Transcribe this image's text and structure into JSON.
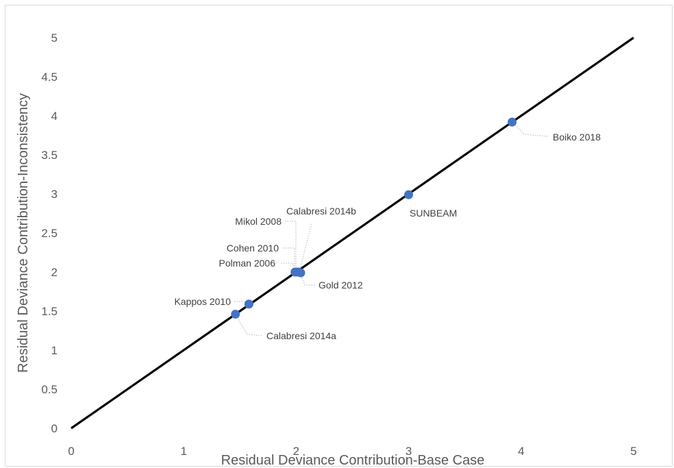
{
  "chart_data": {
    "type": "scatter",
    "xlabel": "Residual Deviance Contribution-Base Case",
    "ylabel": "Residual Deviance Contribution-Inconsistency",
    "xlim": [
      0,
      5
    ],
    "ylim": [
      0,
      5
    ],
    "x_ticks": [
      "0",
      "1",
      "2",
      "3",
      "4",
      "5"
    ],
    "y_ticks": [
      "0",
      "0.5",
      "1",
      "1.5",
      "2",
      "2.5",
      "3",
      "3.5",
      "4",
      "4.5",
      "5"
    ],
    "grid": false,
    "reference_line": {
      "from": [
        0,
        0
      ],
      "to": [
        5,
        5
      ]
    },
    "marker_color": "#4472C4",
    "line_color": "#000000",
    "points": [
      {
        "label": "Boiko 2018",
        "x": 3.92,
        "y": 3.92
      },
      {
        "label": "SUNBEAM",
        "x": 3.0,
        "y": 2.99
      },
      {
        "label": "Calabresi 2014b",
        "x": 2.02,
        "y": 2.0
      },
      {
        "label": "Mikol 2008",
        "x": 2.0,
        "y": 2.0
      },
      {
        "label": "Cohen 2010",
        "x": 2.0,
        "y": 2.0
      },
      {
        "label": "Polman 2006",
        "x": 1.99,
        "y": 2.0
      },
      {
        "label": "Gold 2012",
        "x": 2.04,
        "y": 1.99
      },
      {
        "label": "Kappos 2010",
        "x": 1.58,
        "y": 1.59
      },
      {
        "label": "Calabresi 2014a",
        "x": 1.46,
        "y": 1.46
      }
    ]
  }
}
